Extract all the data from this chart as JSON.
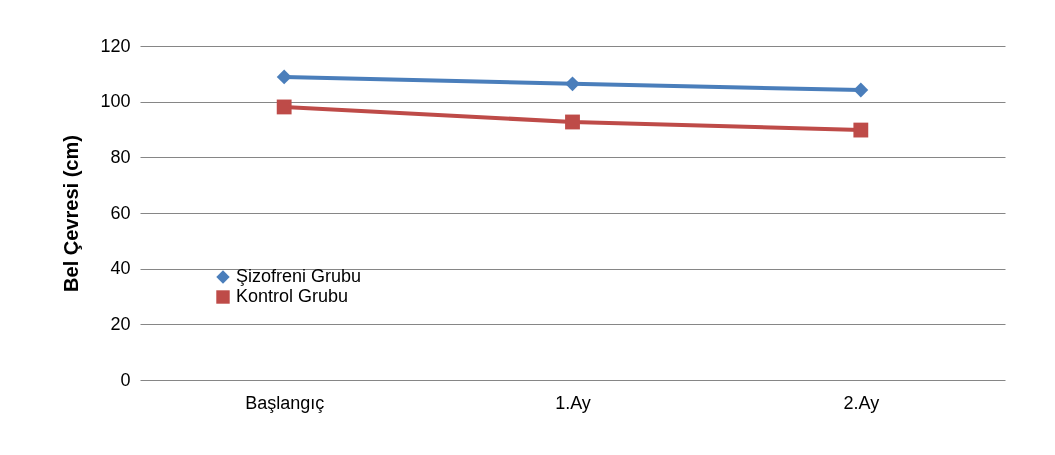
{
  "chart_data": {
    "type": "line",
    "ylabel": "Bel Çevresi (cm)",
    "categories": [
      "Başlangıç",
      "1.Ay",
      "2.Ay"
    ],
    "series": [
      {
        "name": "Şizofreni Grubu",
        "color": "#4a7ebb",
        "marker": "diamond",
        "values": [
          108.9,
          106.4,
          104.2
        ]
      },
      {
        "name": "Kontrol Grubu",
        "color": "#be4b48",
        "marker": "square",
        "values": [
          98.1,
          92.7,
          89.8
        ]
      }
    ],
    "ylim": [
      0,
      120
    ],
    "yticks": [
      0,
      20,
      40,
      60,
      80,
      100,
      120
    ],
    "grid": "y",
    "legend": "bottom left",
    "line_style": "solid"
  }
}
